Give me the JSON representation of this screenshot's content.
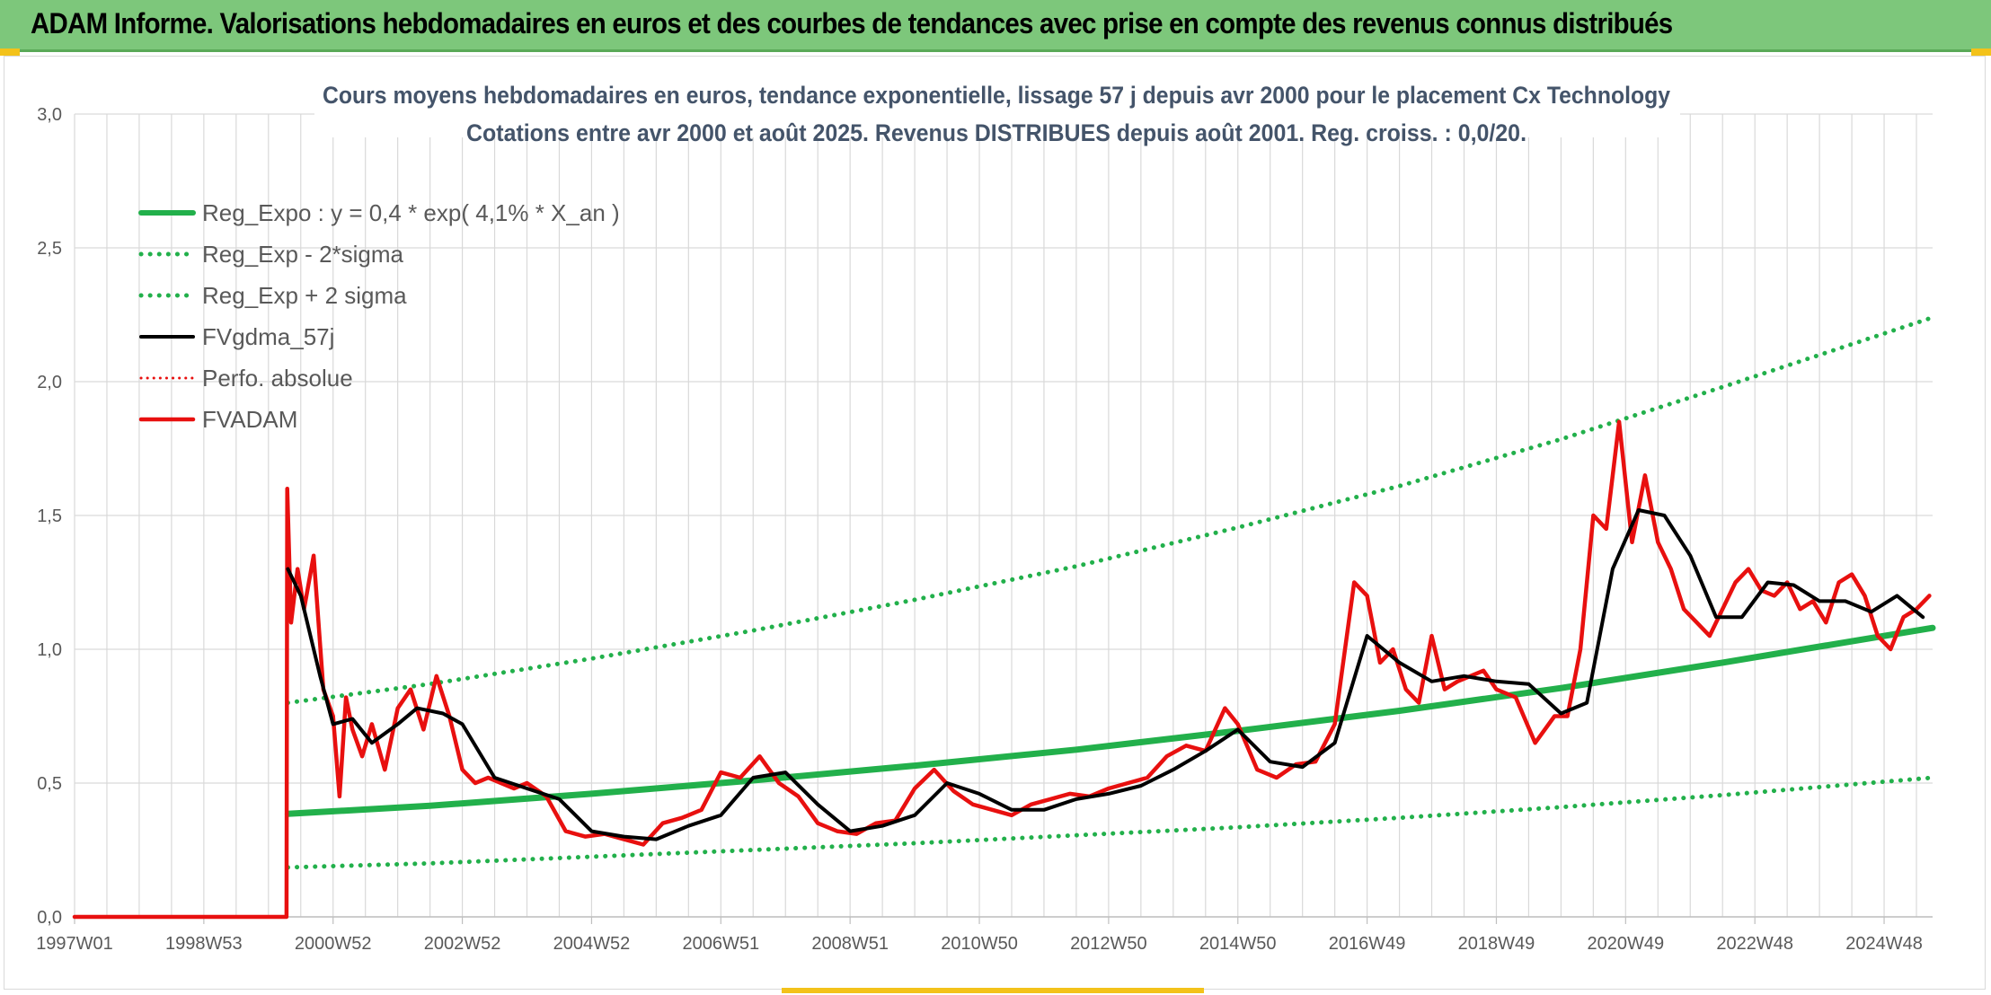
{
  "header": {
    "title": "ADAM Informe. Valorisations hebdomadaires en euros et des courbes de tendances avec prise en compte des revenus connus distribués"
  },
  "colors": {
    "header_bg": "#7dc77b",
    "accent": "#f3c21a",
    "reg_expo": "#22b04b",
    "fvgdma": "#000000",
    "fvadam": "#e8100f",
    "perfo": "#e8100f",
    "grid": "#d9d9d9"
  },
  "chart_data": {
    "type": "line",
    "title": "Cours moyens hebdomadaires en euros, tendance exponentielle, lissage 57 j depuis avr 2000 pour le placement Cx Technology",
    "subtitle": "Cotations entre avr 2000 et août 2025. Revenus DISTRIBUES depuis août 2001. Reg. croiss. : 0,0/20.",
    "xlabel": "",
    "ylabel": "",
    "ylim": [
      0,
      3
    ],
    "xlim": [
      1997.0,
      2025.75
    ],
    "grid": true,
    "legend_position": "top-left",
    "y_ticks": [
      "0,0",
      "0,5",
      "1,0",
      "1,5",
      "2,0",
      "2,5",
      "3,0"
    ],
    "x_ticks": [
      {
        "x": 1997.0,
        "label": "1997W01"
      },
      {
        "x": 1999.0,
        "label": "1998W53"
      },
      {
        "x": 2001.0,
        "label": "2000W52"
      },
      {
        "x": 2003.0,
        "label": "2002W52"
      },
      {
        "x": 2005.0,
        "label": "2004W52"
      },
      {
        "x": 2007.0,
        "label": "2006W51"
      },
      {
        "x": 2009.0,
        "label": "2008W51"
      },
      {
        "x": 2011.0,
        "label": "2010W50"
      },
      {
        "x": 2013.0,
        "label": "2012W50"
      },
      {
        "x": 2015.0,
        "label": "2014W50"
      },
      {
        "x": 2017.0,
        "label": "2016W49"
      },
      {
        "x": 2019.0,
        "label": "2018W49"
      },
      {
        "x": 2021.0,
        "label": "2020W49"
      },
      {
        "x": 2023.0,
        "label": "2022W48"
      },
      {
        "x": 2025.0,
        "label": "2024W48"
      }
    ],
    "x_grid_step_years": 0.5,
    "series": [
      {
        "name": "Reg_Expo : y = 0,4 * exp( 4,1% *  X_an )",
        "key": "reg_expo",
        "style": "solid-thick",
        "x": [
          2000.3,
          2002.5,
          2005.0,
          2007.5,
          2010.0,
          2012.5,
          2015.0,
          2017.5,
          2020.0,
          2022.5,
          2025.75
        ],
        "y": [
          0.385,
          0.415,
          0.46,
          0.51,
          0.565,
          0.625,
          0.695,
          0.77,
          0.855,
          0.95,
          1.08
        ]
      },
      {
        "name": "Reg_Exp - 2*sigma",
        "key": "reg_minus",
        "style": "dotted-green",
        "x": [
          2000.3,
          2002.5,
          2005.0,
          2007.5,
          2010.0,
          2012.5,
          2015.0,
          2017.5,
          2020.0,
          2022.5,
          2025.75
        ],
        "y": [
          0.185,
          0.2,
          0.225,
          0.25,
          0.275,
          0.305,
          0.335,
          0.37,
          0.41,
          0.455,
          0.52
        ]
      },
      {
        "name": "Reg_Exp + 2 sigma",
        "key": "reg_plus",
        "style": "dotted-green",
        "x": [
          2000.3,
          2002.5,
          2005.0,
          2007.5,
          2010.0,
          2012.5,
          2015.0,
          2017.5,
          2020.0,
          2022.5,
          2025.75
        ],
        "y": [
          0.8,
          0.87,
          0.965,
          1.07,
          1.185,
          1.31,
          1.455,
          1.61,
          1.785,
          1.98,
          2.24
        ]
      },
      {
        "name": "FVgdma_57j",
        "key": "fvgdma",
        "style": "solid-black",
        "x": [
          2000.3,
          2000.5,
          2000.8,
          2001.0,
          2001.3,
          2001.6,
          2002.0,
          2002.3,
          2002.7,
          2003.0,
          2003.5,
          2004.0,
          2004.5,
          2005.0,
          2005.5,
          2006.0,
          2006.5,
          2007.0,
          2007.5,
          2008.0,
          2008.5,
          2009.0,
          2009.5,
          2010.0,
          2010.5,
          2011.0,
          2011.5,
          2012.0,
          2012.5,
          2013.0,
          2013.5,
          2014.0,
          2014.5,
          2015.0,
          2015.5,
          2016.0,
          2016.5,
          2017.0,
          2017.5,
          2018.0,
          2018.5,
          2019.0,
          2019.5,
          2020.0,
          2020.4,
          2020.8,
          2021.2,
          2021.6,
          2022.0,
          2022.4,
          2022.8,
          2023.2,
          2023.6,
          2024.0,
          2024.4,
          2024.8,
          2025.2,
          2025.6
        ],
        "y": [
          1.3,
          1.2,
          0.9,
          0.72,
          0.74,
          0.65,
          0.72,
          0.78,
          0.76,
          0.72,
          0.52,
          0.48,
          0.44,
          0.32,
          0.3,
          0.29,
          0.34,
          0.38,
          0.52,
          0.54,
          0.42,
          0.32,
          0.34,
          0.38,
          0.5,
          0.46,
          0.4,
          0.4,
          0.44,
          0.46,
          0.49,
          0.55,
          0.62,
          0.7,
          0.58,
          0.56,
          0.65,
          1.05,
          0.95,
          0.88,
          0.9,
          0.88,
          0.87,
          0.76,
          0.8,
          1.3,
          1.52,
          1.5,
          1.35,
          1.12,
          1.12,
          1.25,
          1.24,
          1.18,
          1.18,
          1.14,
          1.2,
          1.12
        ]
      },
      {
        "name": "Perfo. absolue",
        "key": "perfo",
        "style": "dotted-red",
        "x": [],
        "y": []
      },
      {
        "name": "FVADAM",
        "key": "fvadam",
        "style": "solid-red",
        "x": [
          1997.0,
          2000.28,
          2000.29,
          2000.35,
          2000.45,
          2000.55,
          2000.7,
          2000.85,
          2001.0,
          2001.1,
          2001.2,
          2001.3,
          2001.45,
          2001.6,
          2001.8,
          2002.0,
          2002.2,
          2002.4,
          2002.6,
          2002.8,
          2003.0,
          2003.2,
          2003.4,
          2003.6,
          2003.8,
          2004.0,
          2004.3,
          2004.6,
          2004.9,
          2005.2,
          2005.5,
          2005.8,
          2006.1,
          2006.4,
          2006.7,
          2007.0,
          2007.3,
          2007.6,
          2007.9,
          2008.2,
          2008.5,
          2008.8,
          2009.1,
          2009.4,
          2009.7,
          2010.0,
          2010.3,
          2010.6,
          2010.9,
          2011.2,
          2011.5,
          2011.8,
          2012.1,
          2012.4,
          2012.7,
          2013.0,
          2013.3,
          2013.6,
          2013.9,
          2014.2,
          2014.5,
          2014.8,
          2015.0,
          2015.3,
          2015.6,
          2015.9,
          2016.2,
          2016.5,
          2016.8,
          2017.0,
          2017.2,
          2017.4,
          2017.6,
          2017.8,
          2018.0,
          2018.2,
          2018.4,
          2018.6,
          2018.8,
          2019.0,
          2019.3,
          2019.6,
          2019.9,
          2020.1,
          2020.3,
          2020.5,
          2020.7,
          2020.9,
          2021.1,
          2021.3,
          2021.5,
          2021.7,
          2021.9,
          2022.1,
          2022.3,
          2022.5,
          2022.7,
          2022.9,
          2023.1,
          2023.3,
          2023.5,
          2023.7,
          2023.9,
          2024.1,
          2024.3,
          2024.5,
          2024.7,
          2024.9,
          2025.1,
          2025.3,
          2025.5,
          2025.7
        ],
        "y": [
          0.0,
          0.0,
          1.6,
          1.1,
          1.3,
          1.15,
          1.35,
          0.85,
          0.75,
          0.45,
          0.82,
          0.7,
          0.6,
          0.72,
          0.55,
          0.78,
          0.85,
          0.7,
          0.9,
          0.75,
          0.55,
          0.5,
          0.52,
          0.5,
          0.48,
          0.5,
          0.45,
          0.32,
          0.3,
          0.31,
          0.29,
          0.27,
          0.35,
          0.37,
          0.4,
          0.54,
          0.52,
          0.6,
          0.5,
          0.45,
          0.35,
          0.32,
          0.31,
          0.35,
          0.36,
          0.48,
          0.55,
          0.47,
          0.42,
          0.4,
          0.38,
          0.42,
          0.44,
          0.46,
          0.45,
          0.48,
          0.5,
          0.52,
          0.6,
          0.64,
          0.62,
          0.78,
          0.72,
          0.55,
          0.52,
          0.57,
          0.58,
          0.72,
          1.25,
          1.2,
          0.95,
          1.0,
          0.85,
          0.8,
          1.05,
          0.85,
          0.88,
          0.9,
          0.92,
          0.85,
          0.82,
          0.65,
          0.75,
          0.75,
          1.0,
          1.5,
          1.45,
          1.85,
          1.4,
          1.65,
          1.4,
          1.3,
          1.15,
          1.1,
          1.05,
          1.15,
          1.25,
          1.3,
          1.22,
          1.2,
          1.25,
          1.15,
          1.18,
          1.1,
          1.25,
          1.28,
          1.2,
          1.05,
          1.0,
          1.12,
          1.15,
          1.2
        ]
      }
    ]
  }
}
